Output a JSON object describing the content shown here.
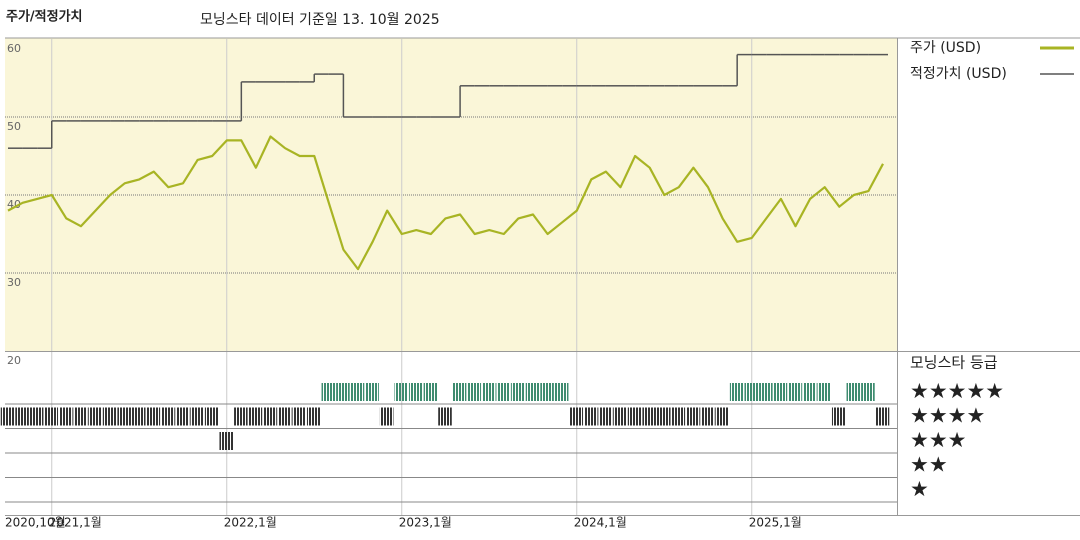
{
  "chart_data": [
    {
      "type": "line",
      "title": "주가/적정가치",
      "subtitle": "모닝스타 데이터 기준일 13. 10월 2025",
      "x": [
        "2020-10",
        "2020-11",
        "2020-12",
        "2021-01",
        "2021-02",
        "2021-03",
        "2021-04",
        "2021-05",
        "2021-06",
        "2021-07",
        "2021-08",
        "2021-09",
        "2021-10",
        "2021-11",
        "2021-12",
        "2022-01",
        "2022-02",
        "2022-03",
        "2022-04",
        "2022-05",
        "2022-06",
        "2022-07",
        "2022-08",
        "2022-09",
        "2022-10",
        "2022-11",
        "2022-12",
        "2023-01",
        "2023-02",
        "2023-03",
        "2023-04",
        "2023-05",
        "2023-06",
        "2023-07",
        "2023-08",
        "2023-09",
        "2023-10",
        "2023-11",
        "2023-12",
        "2024-01",
        "2024-02",
        "2024-03",
        "2024-04",
        "2024-05",
        "2024-06",
        "2024-07",
        "2024-08",
        "2024-09",
        "2024-10",
        "2024-11",
        "2024-12",
        "2025-01",
        "2025-02",
        "2025-03",
        "2025-04",
        "2025-05",
        "2025-06",
        "2025-07",
        "2025-08",
        "2025-09",
        "2025-10"
      ],
      "xticks": [
        {
          "value": "2020-10",
          "label": "2020,10월"
        },
        {
          "value": "2021-01",
          "label": "2021,1월"
        },
        {
          "value": "2022-01",
          "label": "2022,1월"
        },
        {
          "value": "2023-01",
          "label": "2023,1월"
        },
        {
          "value": "2024-01",
          "label": "2024,1월"
        },
        {
          "value": "2025-01",
          "label": "2025,1월"
        }
      ],
      "ylim": [
        20,
        60
      ],
      "yticks": [
        20,
        30,
        40,
        50,
        60
      ],
      "grid": true,
      "background": "#faf6d8",
      "series": [
        {
          "name": "주가 (USD)",
          "color": "#a8b424",
          "values": [
            38,
            39,
            39.5,
            40,
            37,
            36,
            38,
            40,
            41.5,
            42,
            43,
            41,
            41.5,
            44.5,
            45,
            47,
            47,
            43.5,
            47.5,
            46,
            45,
            45,
            39,
            33,
            30.5,
            34,
            38,
            35,
            35.5,
            35,
            37,
            37.5,
            35,
            35.5,
            35,
            37,
            37.5,
            35,
            36.5,
            38,
            42,
            43,
            41,
            45,
            43.5,
            40,
            41,
            43.5,
            41,
            37,
            34,
            34.5,
            37,
            39.5,
            36,
            39.5,
            41,
            38.5,
            40,
            40.5,
            44
          ]
        },
        {
          "name": "적정가치 (USD)",
          "color": "#555555",
          "line_style": "steps",
          "values": [
            46,
            46,
            46,
            49.5,
            49.5,
            49.5,
            49.5,
            49.5,
            49.5,
            49.5,
            49.5,
            49.5,
            49.5,
            49.5,
            49.5,
            49.5,
            54.5,
            54.5,
            54.5,
            54.5,
            54.5,
            55.5,
            55.5,
            50,
            50,
            50,
            50,
            50,
            50,
            50,
            50,
            54,
            54,
            54,
            54,
            54,
            54,
            54,
            54,
            54,
            54,
            54,
            54,
            54,
            54,
            54,
            54,
            54,
            54,
            54,
            58,
            58,
            58,
            58,
            58,
            58,
            58,
            58,
            58,
            58,
            58
          ]
        }
      ]
    },
    {
      "type": "strip",
      "title": "모닝스타 등급",
      "categories": [
        "★★★★★",
        "★★★★",
        "★★★",
        "★★",
        "★"
      ],
      "row_colors": [
        "#3f8c70",
        "#333333",
        "#333333",
        "#333333",
        "#333333"
      ],
      "x": [
        "2020-10",
        "2020-11",
        "2020-12",
        "2021-01",
        "2021-02",
        "2021-03",
        "2021-04",
        "2021-05",
        "2021-06",
        "2021-07",
        "2021-08",
        "2021-09",
        "2021-10",
        "2021-11",
        "2021-12",
        "2022-01",
        "2022-02",
        "2022-03",
        "2022-04",
        "2022-05",
        "2022-06",
        "2022-07",
        "2022-08",
        "2022-09",
        "2022-10",
        "2022-11",
        "2022-12",
        "2023-01",
        "2023-02",
        "2023-03",
        "2023-04",
        "2023-05",
        "2023-06",
        "2023-07",
        "2023-08",
        "2023-09",
        "2023-10",
        "2023-11",
        "2023-12",
        "2024-01",
        "2024-02",
        "2024-03",
        "2024-04",
        "2024-05",
        "2024-06",
        "2024-07",
        "2024-08",
        "2024-09",
        "2024-10",
        "2024-11",
        "2024-12",
        "2025-01",
        "2025-02",
        "2025-03",
        "2025-04",
        "2025-05",
        "2025-06",
        "2025-07",
        "2025-08",
        "2025-09",
        "2025-10"
      ],
      "values": [
        4,
        4,
        4,
        4,
        4,
        4,
        4,
        4,
        4,
        4,
        4,
        4,
        4,
        4,
        4,
        3,
        4,
        4,
        4,
        4,
        4,
        4,
        5,
        5,
        5,
        5,
        4,
        5,
        5,
        5,
        4,
        5,
        5,
        5,
        5,
        5,
        5,
        5,
        5,
        4,
        4,
        4,
        4,
        4,
        4,
        4,
        4,
        4,
        4,
        4,
        5,
        5,
        5,
        5,
        5,
        5,
        5,
        4,
        5,
        5,
        4
      ]
    }
  ]
}
